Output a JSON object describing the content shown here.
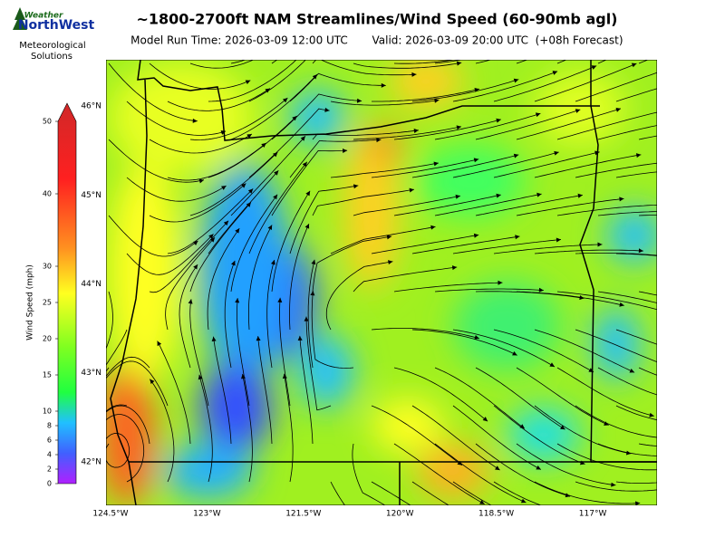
{
  "header": {
    "title": "~1800-2700ft NAM Streamlines/Wind Speed (60-90mb agl)",
    "model_run": "Model Run Time: 2026-03-09 12:00 UTC",
    "valid": "Valid: 2026-03-09 20:00 UTC  (+08h Forecast)"
  },
  "logo": {
    "top": "Weather",
    "main": "NorthWest",
    "caption": [
      "Meteorological",
      "Solutions"
    ]
  },
  "colorbar": {
    "label": "Wind Speed (mph)",
    "vlim": [
      0,
      50
    ],
    "ticks": [
      0,
      2,
      4,
      6,
      8,
      10,
      15,
      20,
      25,
      30,
      40,
      50
    ]
  },
  "map": {
    "latlim": [
      41.51,
      46.52
    ],
    "lonlim": [
      -124.57,
      -116.0
    ],
    "lat_ticks": [
      {
        "value": 46,
        "label": "46°N"
      },
      {
        "value": 45,
        "label": "45°N"
      },
      {
        "value": 44,
        "label": "44°N"
      },
      {
        "value": 43,
        "label": "43°N"
      },
      {
        "value": 42,
        "label": "42°N"
      }
    ],
    "lon_ticks": [
      {
        "value": -124.5,
        "label": "124.5°W"
      },
      {
        "value": -123,
        "label": "123°W"
      },
      {
        "value": -121.5,
        "label": "121.5°W"
      },
      {
        "value": -120,
        "label": "120°W"
      },
      {
        "value": -118.5,
        "label": "118.5°W"
      },
      {
        "value": -117,
        "label": "117°W"
      }
    ]
  }
}
